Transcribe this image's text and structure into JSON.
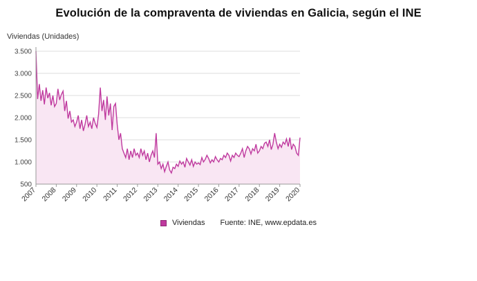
{
  "page": {
    "title": "Evolución de la compraventa de viviendas en Galicia, según el INE"
  },
  "chart": {
    "unit_label": "Viviendas (Unidades)",
    "legend_label": "Viviendas",
    "source": "Fuente: INE, www.epdata.es",
    "colors": {
      "line": "#bf399e",
      "fill": "#f9e6f3",
      "grid": "#dddddd",
      "axis": "#999999",
      "tick_text": "#444444"
    }
  },
  "chart_data": {
    "type": "line",
    "title": "Evolución de la compraventa de viviendas en Galicia, según el INE",
    "xlabel": "",
    "ylabel": "Viviendas (Unidades)",
    "ylim": [
      500,
      3500
    ],
    "grid": "horizontal",
    "legend_position": "bottom",
    "x_tick_labels": [
      "2007",
      "2008",
      "2009",
      "2010",
      "2011",
      "2012",
      "2013",
      "2014",
      "2015",
      "2016",
      "2017",
      "2018",
      "2019",
      "2020"
    ],
    "y_ticks": [
      {
        "value": 500,
        "label": "500"
      },
      {
        "value": 1000,
        "label": "1.000"
      },
      {
        "value": 1500,
        "label": "1.500"
      },
      {
        "value": 2000,
        "label": "2.000"
      },
      {
        "value": 2500,
        "label": "2.500"
      },
      {
        "value": 3000,
        "label": "3.000"
      },
      {
        "value": 3500,
        "label": "3.500"
      }
    ],
    "series": [
      {
        "name": "Viviendas",
        "frequency": "monthly",
        "values": [
          3500,
          2420,
          2760,
          2380,
          2620,
          2300,
          2680,
          2440,
          2560,
          2280,
          2500,
          2250,
          2320,
          2650,
          2400,
          2520,
          2600,
          2150,
          2380,
          1980,
          2150,
          1900,
          1950,
          1800,
          1900,
          2050,
          1750,
          1950,
          1700,
          1850,
          2050,
          1800,
          1900,
          1750,
          2000,
          1870,
          1780,
          2080,
          2680,
          2150,
          2400,
          1950,
          2480,
          2050,
          2320,
          1720,
          2250,
          2320,
          1850,
          1500,
          1650,
          1300,
          1200,
          1100,
          1300,
          1050,
          1250,
          1100,
          1300,
          1150,
          1200,
          1100,
          1300,
          1150,
          1250,
          1050,
          1200,
          1000,
          1150,
          1250,
          1100,
          1650,
          950,
          1000,
          850,
          950,
          780,
          900,
          1000,
          820,
          750,
          880,
          850,
          950,
          900,
          1020,
          950,
          1000,
          880,
          1080,
          1000,
          930,
          1050,
          900,
          1000,
          950,
          980,
          940,
          1100,
          1000,
          1060,
          1150,
          1080,
          980,
          1050,
          1000,
          1120,
          1050,
          1000,
          1080,
          1050,
          1150,
          1100,
          1200,
          1150,
          1020,
          1150,
          1100,
          1200,
          1150,
          1120,
          1200,
          1300,
          1100,
          1250,
          1350,
          1300,
          1180,
          1300,
          1250,
          1400,
          1200,
          1250,
          1350,
          1300,
          1420,
          1450,
          1350,
          1500,
          1280,
          1400,
          1650,
          1450,
          1300,
          1400,
          1330,
          1450,
          1400,
          1520,
          1350,
          1550,
          1280,
          1400,
          1350,
          1200,
          1150,
          1550
        ]
      }
    ]
  }
}
